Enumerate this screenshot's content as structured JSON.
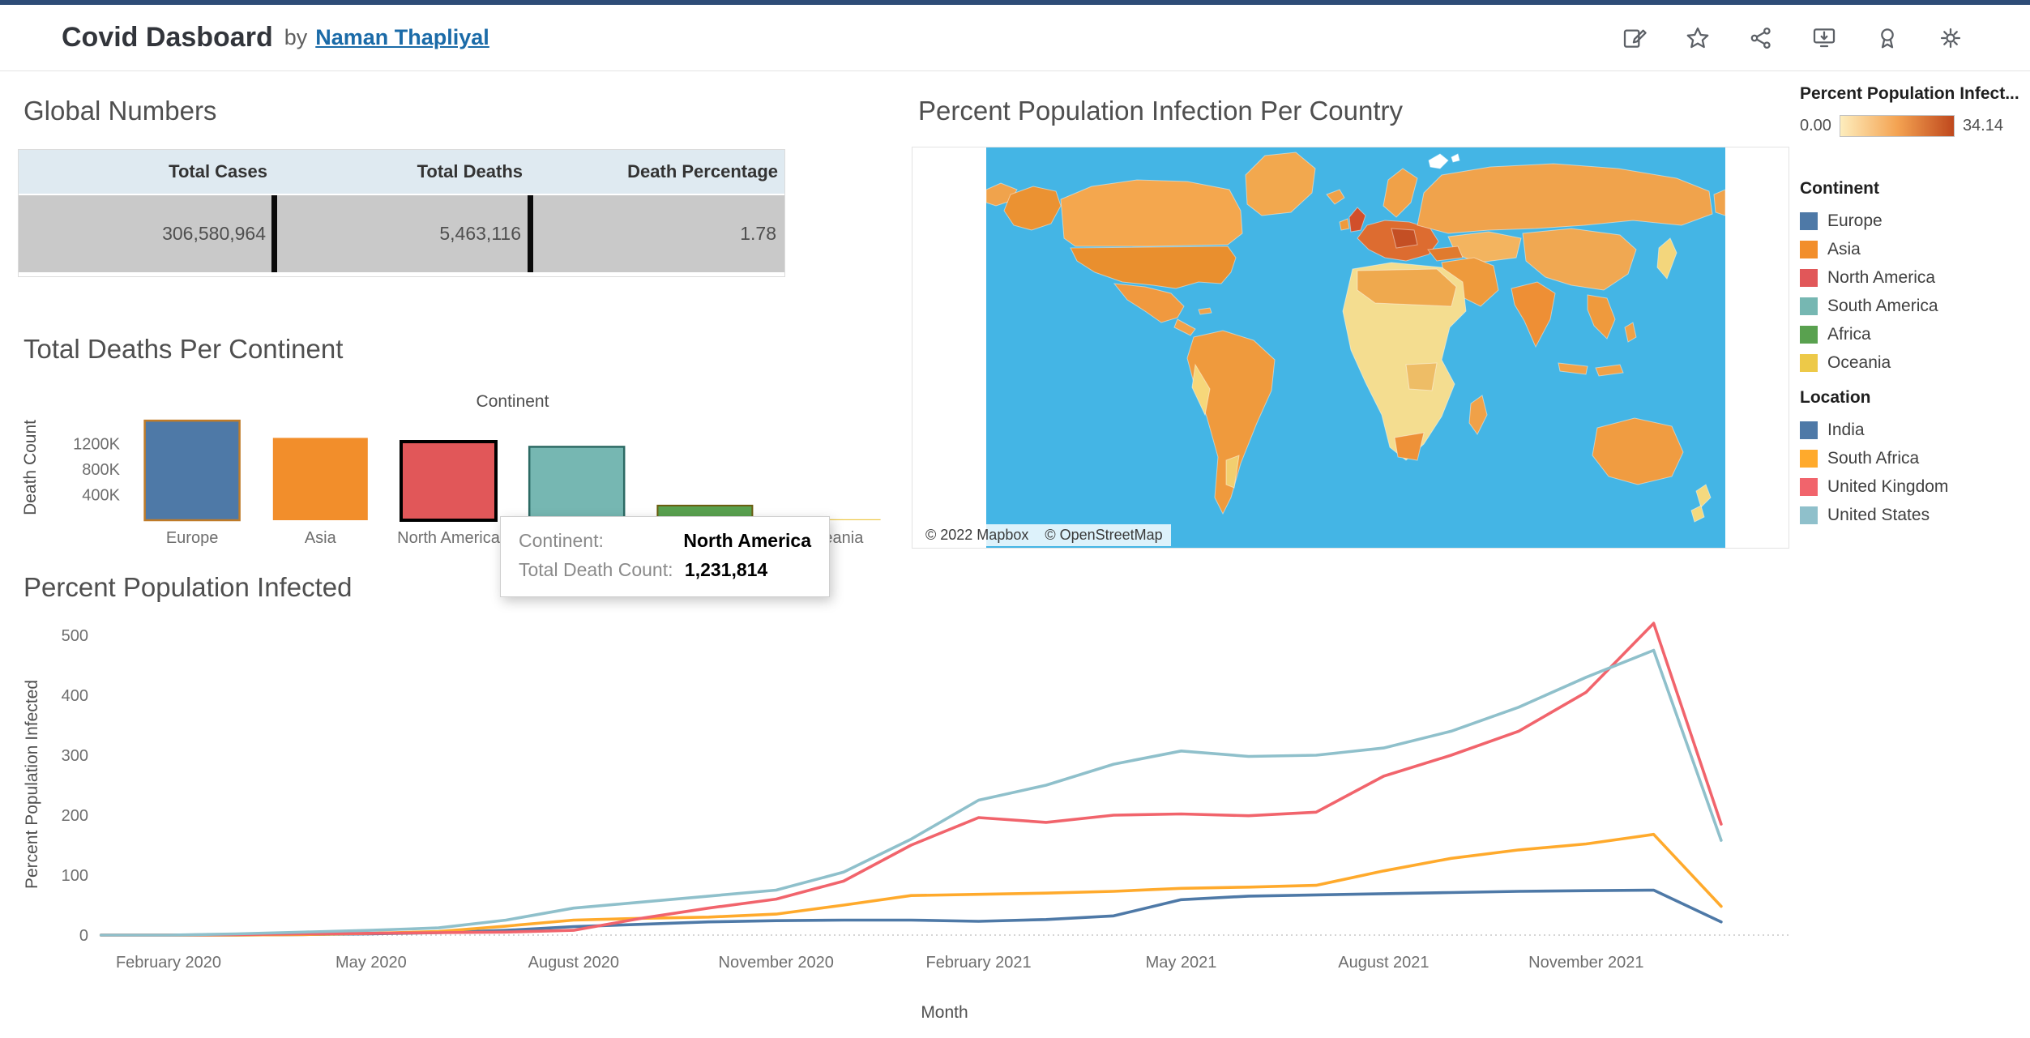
{
  "header": {
    "title": "Covid Dasboard",
    "by_label": "by",
    "author": "Naman Thapliyal"
  },
  "toolbar": {
    "icons": [
      "edit-icon",
      "star-icon",
      "share-icon",
      "download-icon",
      "badge-icon",
      "gear-icon"
    ]
  },
  "sections": {
    "global_numbers": "Global Numbers",
    "deaths_per_continent": "Total Deaths Per Continent",
    "percent_infected": "Percent Population Infected",
    "map": "Percent Population Infection Per Country"
  },
  "tooltip": {
    "row1_label": "Continent:",
    "row1_value": "North America",
    "row2_label": "Total Death Count:",
    "row2_value": "1,231,814"
  },
  "map": {
    "attribution_1": "© 2022 Mapbox",
    "attribution_2": "© OpenStreetMap",
    "ocean_color": "#44b5e5"
  },
  "legends": {
    "gradient": {
      "title": "Percent Population Infect...",
      "min": "0.00",
      "max": "34.14",
      "stops": [
        "#fdedbd",
        "#f4a352",
        "#bf481d"
      ]
    },
    "continent": {
      "title": "Continent",
      "items": [
        {
          "label": "Europe",
          "color": "#4e79a7"
        },
        {
          "label": "Asia",
          "color": "#f28e2b"
        },
        {
          "label": "North America",
          "color": "#e15759"
        },
        {
          "label": "South America",
          "color": "#76b7b2"
        },
        {
          "label": "Africa",
          "color": "#59a14f"
        },
        {
          "label": "Oceania",
          "color": "#edc948"
        }
      ]
    },
    "location": {
      "title": "Location",
      "items": [
        {
          "label": "India",
          "color": "#4e79a7"
        },
        {
          "label": "South Africa",
          "color": "#ffaa2c"
        },
        {
          "label": "United Kingdom",
          "color": "#f1646c"
        },
        {
          "label": "United States",
          "color": "#8fc0cb"
        }
      ]
    }
  },
  "chart_data": [
    {
      "type": "table",
      "title": "Global Numbers",
      "columns": [
        "Total Cases",
        "Total Deaths",
        "Death Percentage"
      ],
      "rows": [
        [
          "306,580,964",
          "5,463,116",
          "1.78"
        ]
      ]
    },
    {
      "type": "bar",
      "title": "Total Deaths Per Continent",
      "xlabel": "Continent",
      "ylabel": "Death Count",
      "categories": [
        "Europe",
        "Asia",
        "North America",
        "South America",
        "Africa",
        "Oceania"
      ],
      "values": [
        1560000,
        1290000,
        1231814,
        1150000,
        230000,
        5000
      ],
      "colors": [
        "#4e79a7",
        "#f28e2b",
        "#e15759",
        "#76b7b2",
        "#59a14f",
        "#edc948"
      ],
      "strokes": [
        "#bf7b28",
        "none",
        "#000000",
        "#2c6a64",
        "#6b5d10",
        "none"
      ],
      "stroke_widths": [
        2.5,
        0,
        4,
        2.5,
        2,
        0
      ],
      "ylim": [
        0,
        1600000
      ],
      "yticks": [
        {
          "label": "400K",
          "value": 400000
        },
        {
          "label": "800K",
          "value": 800000
        },
        {
          "label": "1200K",
          "value": 1200000
        }
      ],
      "highlighted": "North America"
    },
    {
      "type": "line",
      "title": "Percent Population Infected",
      "xlabel": "Month",
      "ylabel": "Percent Population Infected",
      "ylim": [
        0,
        500
      ],
      "yticks": [
        0,
        100,
        200,
        300,
        400,
        500
      ],
      "x": [
        "Jan 2020",
        "Feb 2020",
        "Mar 2020",
        "Apr 2020",
        "May 2020",
        "Jun 2020",
        "Jul 2020",
        "Aug 2020",
        "Sep 2020",
        "Oct 2020",
        "Nov 2020",
        "Dec 2020",
        "Jan 2021",
        "Feb 2021",
        "Mar 2021",
        "Apr 2021",
        "May 2021",
        "Jun 2021",
        "Jul 2021",
        "Aug 2021",
        "Sep 2021",
        "Oct 2021",
        "Nov 2021",
        "Dec 2021",
        "Jan 2022"
      ],
      "x_ticks": [
        {
          "label": "February 2020",
          "index": 1
        },
        {
          "label": "May 2020",
          "index": 4
        },
        {
          "label": "August 2020",
          "index": 7
        },
        {
          "label": "November 2020",
          "index": 10
        },
        {
          "label": "February 2021",
          "index": 13
        },
        {
          "label": "May 2021",
          "index": 16
        },
        {
          "label": "August 2021",
          "index": 19
        },
        {
          "label": "November 2021",
          "index": 22
        }
      ],
      "series": [
        {
          "name": "India",
          "color": "#4e79a7",
          "values": [
            0,
            0,
            0,
            1,
            2,
            4,
            8,
            14,
            18,
            22,
            24,
            25,
            25,
            23,
            26,
            32,
            59,
            65,
            67,
            69,
            71,
            73,
            74,
            75,
            22
          ]
        },
        {
          "name": "South Africa",
          "color": "#ffaa2c",
          "values": [
            0,
            0,
            0,
            1,
            3,
            6,
            15,
            25,
            28,
            30,
            35,
            50,
            66,
            68,
            70,
            73,
            78,
            80,
            83,
            107,
            128,
            142,
            152,
            168,
            48
          ]
        },
        {
          "name": "United Kingdom",
          "color": "#f1646c",
          "values": [
            0,
            0,
            1,
            2,
            3,
            4,
            5,
            8,
            28,
            45,
            60,
            90,
            150,
            196,
            188,
            200,
            202,
            199,
            205,
            265,
            300,
            340,
            405,
            520,
            185
          ]
        },
        {
          "name": "United States",
          "color": "#8fc0cb",
          "values": [
            0,
            0,
            2,
            5,
            8,
            12,
            25,
            45,
            55,
            65,
            75,
            105,
            160,
            225,
            250,
            285,
            307,
            298,
            300,
            312,
            340,
            380,
            430,
            475,
            158
          ]
        }
      ],
      "legend_position": "right"
    },
    {
      "type": "choropleth",
      "title": "Percent Population Infection Per Country",
      "colorbar_title": "Percent Population Infect...",
      "min": 0.0,
      "max": 34.14
    }
  ]
}
